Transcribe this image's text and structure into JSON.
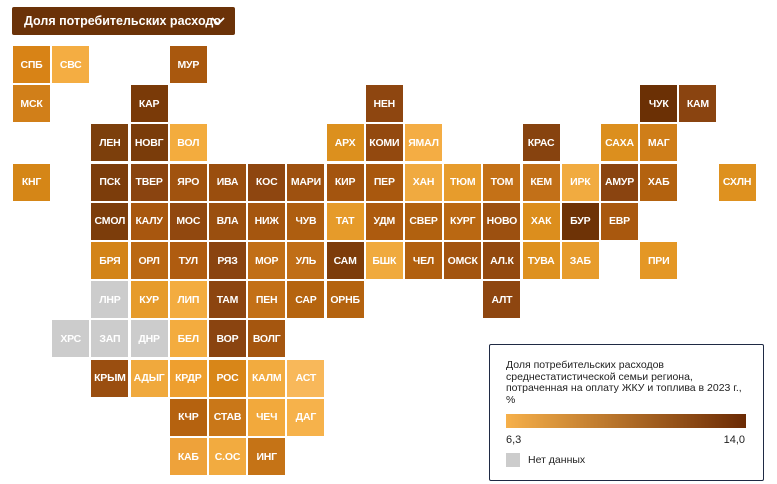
{
  "selector": {
    "label": "Доля потребительских расходо"
  },
  "legend": {
    "title": "Доля потребительских расходов среднестатистической семьи региона, потраченная на оплату ЖКУ и топлива в 2023 г., %",
    "min": "6,3",
    "max": "14,0",
    "no_data": "Нет данных"
  },
  "colors": {
    "gradient_start": "#f6b04a",
    "gradient_end": "#6b2a04",
    "no_data": "#cccccc",
    "dropdown_bg": "#6b3208"
  },
  "regions": [
    {
      "label": "СПБ",
      "color": "#d88316"
    },
    {
      "label": "СВС",
      "color": "#f4ad42"
    },
    {
      "label": "МУР",
      "color": "#a9580e"
    },
    {
      "label": "МСК",
      "color": "#d17f19"
    },
    {
      "label": "КАР",
      "color": "#7a3a08"
    },
    {
      "label": "НЕН",
      "color": "#8e4610"
    },
    {
      "label": "ЧУК",
      "color": "#6b3005"
    },
    {
      "label": "КАМ",
      "color": "#8a4410"
    },
    {
      "label": "ЛЕН",
      "color": "#7c3f0c"
    },
    {
      "label": "НОВГ",
      "color": "#7a3c0a"
    },
    {
      "label": "ВОЛ",
      "color": "#f3ac3e"
    },
    {
      "label": "АРХ",
      "color": "#dc901e"
    },
    {
      "label": "КОМИ",
      "color": "#93490f"
    },
    {
      "label": "ЯМАЛ",
      "color": "#f4ad44"
    },
    {
      "label": "КРАС",
      "color": "#87430f"
    },
    {
      "label": "САХА",
      "color": "#dc8f1e"
    },
    {
      "label": "МАГ",
      "color": "#cf7e19"
    },
    {
      "label": "КНГ",
      "color": "#d58617"
    },
    {
      "label": "ПСК",
      "color": "#7c3d0b"
    },
    {
      "label": "ТВЕР",
      "color": "#8a4410"
    },
    {
      "label": "ЯРО",
      "color": "#a1530f"
    },
    {
      "label": "ИВА",
      "color": "#9a4e0e"
    },
    {
      "label": "КОС",
      "color": "#8e4610"
    },
    {
      "label": "МАРИ",
      "color": "#9e5110"
    },
    {
      "label": "КИР",
      "color": "#a4550f"
    },
    {
      "label": "ПЕР",
      "color": "#a9580e"
    },
    {
      "label": "ХАН",
      "color": "#f0aa40"
    },
    {
      "label": "ТЮМ",
      "color": "#e79c2c"
    },
    {
      "label": "ТОМ",
      "color": "#c47117"
    },
    {
      "label": "КЕМ",
      "color": "#c27018"
    },
    {
      "label": "ИРК",
      "color": "#f1ab40"
    },
    {
      "label": "АМУР",
      "color": "#8a4410"
    },
    {
      "label": "ХАБ",
      "color": "#b3620f"
    },
    {
      "label": "СХЛН",
      "color": "#de911f"
    },
    {
      "label": "СМОЛ",
      "color": "#7c3d0b"
    },
    {
      "label": "КАЛУ",
      "color": "#a8570f"
    },
    {
      "label": "МОС",
      "color": "#91480f"
    },
    {
      "label": "ВЛА",
      "color": "#9a4f0f"
    },
    {
      "label": "НИЖ",
      "color": "#a5560f"
    },
    {
      "label": "ЧУВ",
      "color": "#ae5e10"
    },
    {
      "label": "ТАТ",
      "color": "#e69b2a"
    },
    {
      "label": "УДМ",
      "color": "#ad5b0f"
    },
    {
      "label": "СВЕР",
      "color": "#b1610f"
    },
    {
      "label": "КУРГ",
      "color": "#ba6812"
    },
    {
      "label": "НОВО",
      "color": "#9c5010"
    },
    {
      "label": "ХАК",
      "color": "#dc8e1d"
    },
    {
      "label": "БУР",
      "color": "#6e3306"
    },
    {
      "label": "ЕВР",
      "color": "#a9580e"
    },
    {
      "label": "БРЯ",
      "color": "#d38418"
    },
    {
      "label": "ОРЛ",
      "color": "#bb6813"
    },
    {
      "label": "ТУЛ",
      "color": "#af5c10"
    },
    {
      "label": "РЯЗ",
      "color": "#8a4410"
    },
    {
      "label": "МОР",
      "color": "#c16f17"
    },
    {
      "label": "УЛЬ",
      "color": "#c06e17"
    },
    {
      "label": "САМ",
      "color": "#7d3c0a"
    },
    {
      "label": "БШК",
      "color": "#f0aa3e"
    },
    {
      "label": "ЧЕЛ",
      "color": "#b2600f"
    },
    {
      "label": "ОМСК",
      "color": "#a3540f"
    },
    {
      "label": "АЛ.К",
      "color": "#93490f"
    },
    {
      "label": "ТУВА",
      "color": "#de911f"
    },
    {
      "label": "ЗАБ",
      "color": "#e79c2c"
    },
    {
      "label": "ПРИ",
      "color": "#e49725"
    },
    {
      "label": "ЛНР",
      "color": "#cccccc"
    },
    {
      "label": "КУР",
      "color": "#e69b2b"
    },
    {
      "label": "ЛИП",
      "color": "#f3ac40"
    },
    {
      "label": "ТАМ",
      "color": "#8c4510"
    },
    {
      "label": "ПЕН",
      "color": "#c37017"
    },
    {
      "label": "САР",
      "color": "#b5640f"
    },
    {
      "label": "ОРНБ",
      "color": "#b4630f"
    },
    {
      "label": "АЛТ",
      "color": "#8e4610"
    },
    {
      "label": "ХРС",
      "color": "#cccccc"
    },
    {
      "label": "ЗАП",
      "color": "#cccccc"
    },
    {
      "label": "ДНР",
      "color": "#cccccc"
    },
    {
      "label": "БЕЛ",
      "color": "#f3ac3f"
    },
    {
      "label": "ВОР",
      "color": "#8a4410"
    },
    {
      "label": "ВОЛГ",
      "color": "#a5560f"
    },
    {
      "label": "КРЫМ",
      "color": "#9a4e10"
    },
    {
      "label": "АДЫГ",
      "color": "#f0a93d"
    },
    {
      "label": "КРДР",
      "color": "#ee9f2f"
    },
    {
      "label": "РОС",
      "color": "#d88618"
    },
    {
      "label": "КАЛМ",
      "color": "#f2ab3f"
    },
    {
      "label": "АСТ",
      "color": "#f8b85a"
    },
    {
      "label": "КЧР",
      "color": "#b5620f"
    },
    {
      "label": "СТАВ",
      "color": "#c97718"
    },
    {
      "label": "ЧЕЧ",
      "color": "#f2a93c"
    },
    {
      "label": "ДАГ",
      "color": "#f6b24b"
    },
    {
      "label": "КАБ",
      "color": "#eea23a"
    },
    {
      "label": "С.ОС",
      "color": "#f2ab40"
    },
    {
      "label": "ИНГ",
      "color": "#c57316"
    }
  ]
}
